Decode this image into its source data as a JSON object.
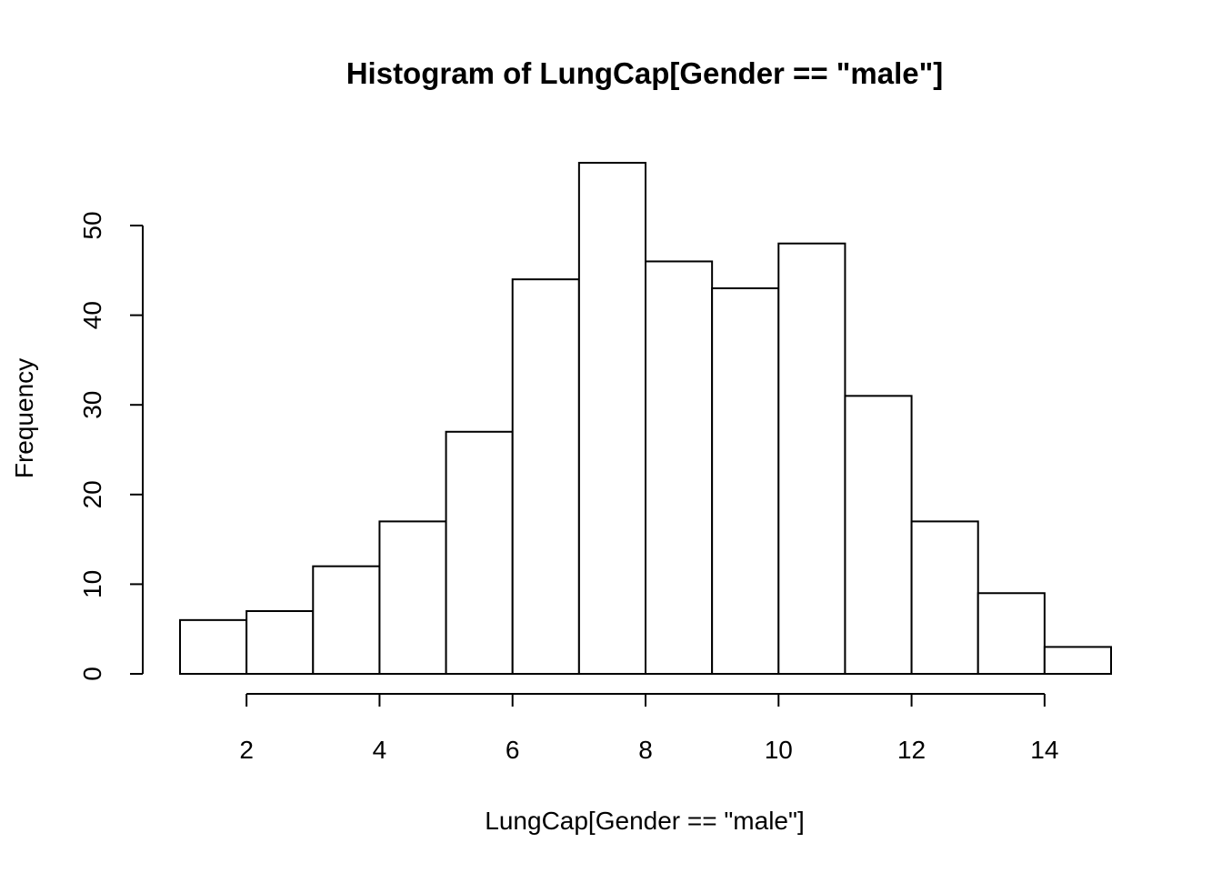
{
  "chart_data": {
    "type": "bar",
    "title": "Histogram of LungCap[Gender == \"male\"]",
    "xlabel": "LungCap[Gender == \"male\"]",
    "ylabel": "Frequency",
    "bins": [
      {
        "from": 1,
        "to": 2,
        "count": 6
      },
      {
        "from": 2,
        "to": 3,
        "count": 7
      },
      {
        "from": 3,
        "to": 4,
        "count": 12
      },
      {
        "from": 4,
        "to": 5,
        "count": 17
      },
      {
        "from": 5,
        "to": 6,
        "count": 27
      },
      {
        "from": 6,
        "to": 7,
        "count": 44
      },
      {
        "from": 7,
        "to": 8,
        "count": 57
      },
      {
        "from": 8,
        "to": 9,
        "count": 46
      },
      {
        "from": 9,
        "to": 10,
        "count": 43
      },
      {
        "from": 10,
        "to": 11,
        "count": 48
      },
      {
        "from": 11,
        "to": 12,
        "count": 31
      },
      {
        "from": 12,
        "to": 13,
        "count": 17
      },
      {
        "from": 13,
        "to": 14,
        "count": 9
      },
      {
        "from": 14,
        "to": 15,
        "count": 3
      }
    ],
    "x_ticks": [
      "2",
      "4",
      "6",
      "8",
      "10",
      "12",
      "14"
    ],
    "y_ticks": [
      "0",
      "10",
      "20",
      "30",
      "40",
      "50"
    ],
    "xlim": [
      1,
      15
    ],
    "ylim": [
      0,
      57
    ],
    "grid": false,
    "colors": {
      "bar_fill": "#ffffff",
      "bar_stroke": "#000000"
    }
  }
}
